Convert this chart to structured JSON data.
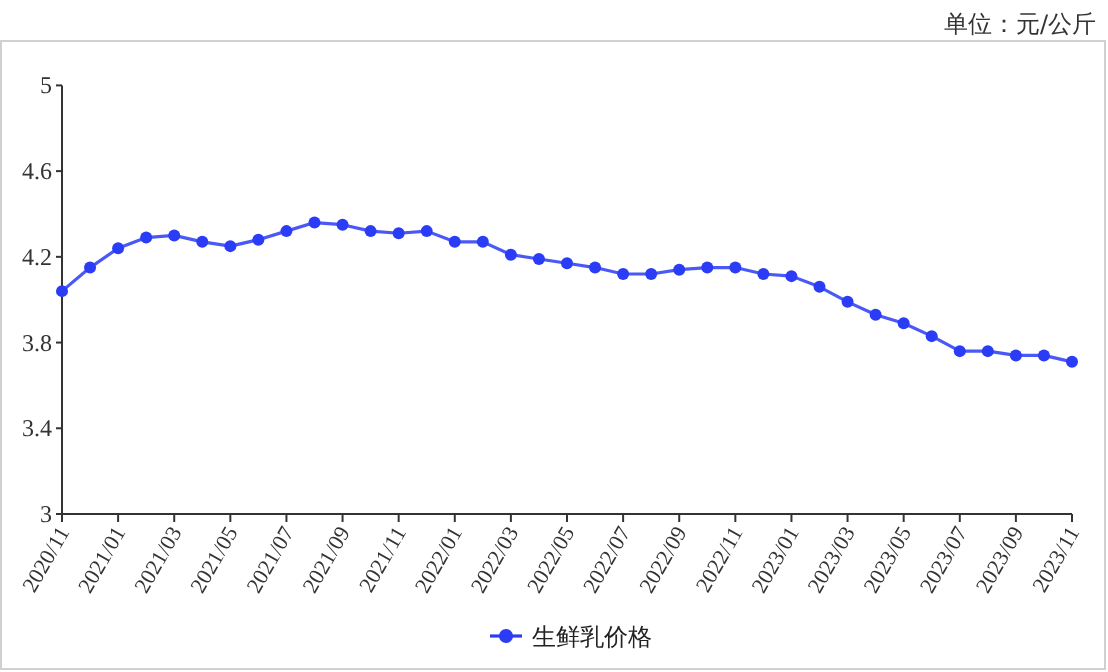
{
  "chart_data": {
    "type": "line",
    "categories": [
      "2020/11",
      null,
      "2021/01",
      null,
      "2021/03",
      null,
      "2021/05",
      null,
      "2021/07",
      null,
      "2021/09",
      null,
      "2021/11",
      null,
      "2022/01",
      null,
      "2022/03",
      null,
      "2022/05",
      null,
      "2022/07",
      null,
      "2022/09",
      null,
      "2022/11",
      null,
      "2023/01",
      null,
      "2023/03",
      null,
      "2023/05",
      null,
      "2023/07",
      null,
      "2023/09",
      null,
      "2023/11"
    ],
    "series": [
      {
        "name": "生鲜乳价格",
        "color": "#2a3cf5",
        "values": [
          4.04,
          4.15,
          4.24,
          4.29,
          4.3,
          4.27,
          4.25,
          4.28,
          4.32,
          4.36,
          4.35,
          4.32,
          4.31,
          4.32,
          4.27,
          4.27,
          4.21,
          4.19,
          4.17,
          4.15,
          4.12,
          4.12,
          4.14,
          4.15,
          4.15,
          4.12,
          4.11,
          4.06,
          3.99,
          3.93,
          3.89,
          3.83,
          3.76,
          3.76,
          3.74,
          3.74,
          3.71
        ]
      }
    ],
    "ylim": [
      3,
      5
    ],
    "yticks": [
      3,
      3.4,
      3.8,
      4.2,
      4.6,
      5
    ],
    "annotations": [
      "单位：元/公斤"
    ],
    "legend": "bottom",
    "grid": false,
    "marker": "circle",
    "line_style": "solid"
  }
}
